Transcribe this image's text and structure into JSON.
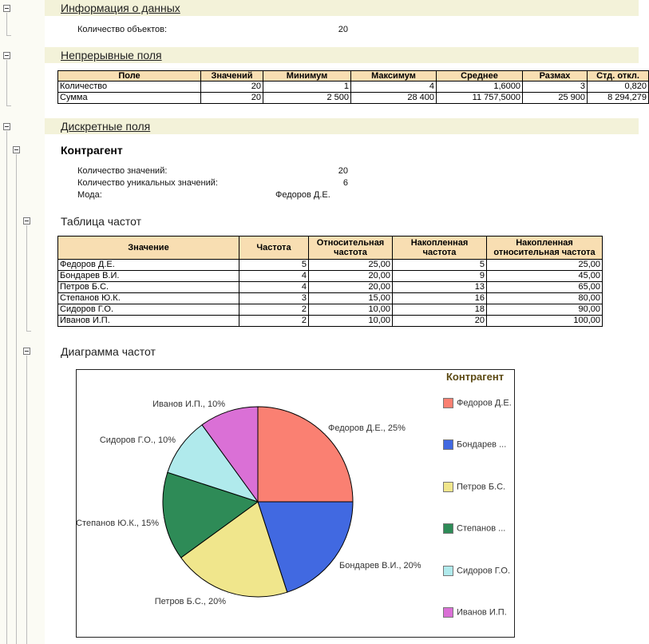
{
  "sections": {
    "info": {
      "title": "Информация о данных",
      "count_label": "Количество объектов:",
      "count_value": "20"
    },
    "continuous": {
      "title": "Непрерывные поля",
      "headers": [
        "Поле",
        "Значений",
        "Минимум",
        "Максимум",
        "Среднее",
        "Размах",
        "Стд. откл."
      ],
      "rows": [
        [
          "Количество",
          "20",
          "1",
          "4",
          "1,6000",
          "3",
          "0,820"
        ],
        [
          "Сумма",
          "20",
          "2 500",
          "28 400",
          "11 757,5000",
          "25 900",
          "8 294,279"
        ]
      ]
    },
    "discrete": {
      "title": "Дискретные поля",
      "field_title": "Контрагент",
      "values_label": "Количество значений:",
      "values_value": "20",
      "unique_label": "Количество уникальных значений:",
      "unique_value": "6",
      "mode_label": "Мода:",
      "mode_value": "Федоров Д.Е."
    },
    "freq_table": {
      "title": "Таблица частот",
      "headers": [
        "Значение",
        "Частота",
        "Относительная частота",
        "Накопленная частота",
        "Накопленная относительная частота"
      ],
      "rows": [
        [
          "Федоров Д.Е.",
          "5",
          "25,00",
          "5",
          "25,00"
        ],
        [
          "Бондарев В.И.",
          "4",
          "20,00",
          "9",
          "45,00"
        ],
        [
          "Петров Б.С.",
          "4",
          "20,00",
          "13",
          "65,00"
        ],
        [
          "Степанов Ю.К.",
          "3",
          "15,00",
          "16",
          "80,00"
        ],
        [
          "Сидоров Г.О.",
          "2",
          "10,00",
          "18",
          "90,00"
        ],
        [
          "Иванов И.П.",
          "2",
          "10,00",
          "20",
          "100,00"
        ]
      ]
    },
    "diagram": {
      "title": "Диаграмма частот"
    }
  },
  "chart_data": {
    "type": "pie",
    "title": "Контрагент",
    "legend_position": "right",
    "slices": [
      {
        "name": "Федоров Д.Е.",
        "legend": "Федоров Д.Е.",
        "label": "Федоров Д.Е., 25%",
        "value": 25,
        "color": "#fa8072"
      },
      {
        "name": "Бондарев В.И.",
        "legend": "Бондарев ...",
        "label": "Бондарев В.И., 20%",
        "value": 20,
        "color": "#4169e1"
      },
      {
        "name": "Петров Б.С.",
        "legend": "Петров Б.С.",
        "label": "Петров Б.С., 20%",
        "value": 20,
        "color": "#f0e68c"
      },
      {
        "name": "Степанов Ю.К.",
        "legend": "Степанов ...",
        "label": "Степанов Ю.К., 15%",
        "value": 15,
        "color": "#2e8b57"
      },
      {
        "name": "Сидоров Г.О.",
        "legend": "Сидоров Г.О.",
        "label": "Сидоров Г.О., 10%",
        "value": 10,
        "color": "#b0eaec"
      },
      {
        "name": "Иванов И.П.",
        "legend": "Иванов И.П.",
        "label": "Иванов И.П., 10%",
        "value": 10,
        "color": "#da70d6"
      }
    ]
  }
}
